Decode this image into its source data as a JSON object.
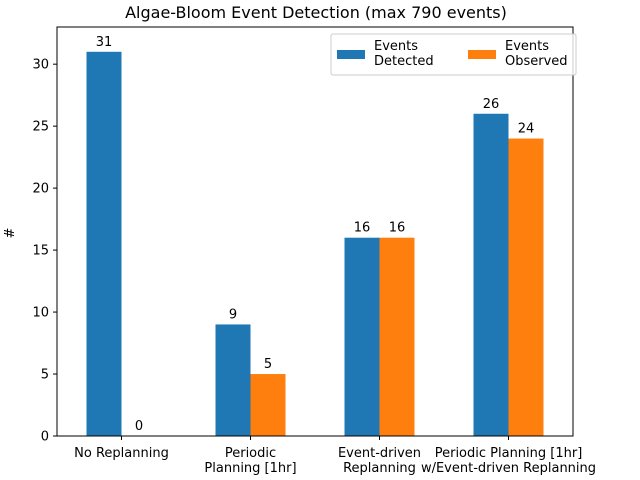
{
  "chart_data": {
    "type": "bar",
    "title": "Algae-Bloom Event Detection (max 790 events)",
    "xlabel": "",
    "ylabel": "#",
    "ylim": [
      0,
      33
    ],
    "yticks": [
      0,
      5,
      10,
      15,
      20,
      25,
      30
    ],
    "grid": false,
    "legend_position": "top-right",
    "categories": [
      [
        "No Replanning"
      ],
      [
        "Periodic",
        "Planning [1hr]"
      ],
      [
        "Event-driven",
        "Replanning"
      ],
      [
        "Periodic Planning [1hr]",
        "w/Event-driven Replanning"
      ]
    ],
    "series": [
      {
        "name": [
          "Events",
          "Detected"
        ],
        "values": [
          31,
          9,
          16,
          26
        ],
        "color": "#1f77b4"
      },
      {
        "name": [
          "Events",
          "Observed"
        ],
        "values": [
          0,
          5,
          16,
          24
        ],
        "color": "#ff7f0e"
      }
    ]
  }
}
